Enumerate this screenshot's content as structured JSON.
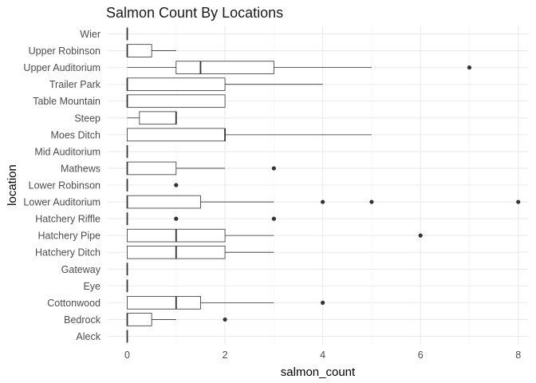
{
  "chart_data": {
    "type": "boxplot",
    "orientation": "horizontal",
    "title": "Salmon Count By Locations",
    "xlabel": "salmon_count",
    "ylabel": "location",
    "xlim": [
      -0.4,
      8.2
    ],
    "xticks": [
      0,
      2,
      4,
      6,
      8
    ],
    "grid": true,
    "categories": [
      "Wier",
      "Upper Robinson",
      "Upper Auditorium",
      "Trailer Park",
      "Table Mountain",
      "Steep",
      "Moes Ditch",
      "Mid Auditorium",
      "Mathews",
      "Lower Robinson",
      "Lower Auditorium",
      "Hatchery Riffle",
      "Hatchery Pipe",
      "Hatchery Ditch",
      "Gateway",
      "Eye",
      "Cottonwood",
      "Bedrock",
      "Aleck"
    ],
    "boxes": [
      {
        "location": "Wier",
        "min": 0,
        "q1": 0,
        "median": 0,
        "q3": 0,
        "max": 0,
        "outliers": []
      },
      {
        "location": "Upper Robinson",
        "min": 0,
        "q1": 0,
        "median": 0,
        "q3": 0.5,
        "max": 1,
        "outliers": []
      },
      {
        "location": "Upper Auditorium",
        "min": 0,
        "q1": 1,
        "median": 1.5,
        "q3": 3,
        "max": 5,
        "outliers": [
          7
        ]
      },
      {
        "location": "Trailer Park",
        "min": 0,
        "q1": 0,
        "median": 0,
        "q3": 2,
        "max": 4,
        "outliers": []
      },
      {
        "location": "Table Mountain",
        "min": 0,
        "q1": 0,
        "median": 0,
        "q3": 2,
        "max": 2,
        "outliers": []
      },
      {
        "location": "Steep",
        "min": 0,
        "q1": 0.25,
        "median": 1,
        "q3": 1,
        "max": 1,
        "outliers": []
      },
      {
        "location": "Moes Ditch",
        "min": 0,
        "q1": 0,
        "median": 2,
        "q3": 2,
        "max": 5,
        "outliers": []
      },
      {
        "location": "Mid Auditorium",
        "min": 0,
        "q1": 0,
        "median": 0,
        "q3": 0,
        "max": 0,
        "outliers": []
      },
      {
        "location": "Mathews",
        "min": 0,
        "q1": 0,
        "median": 0,
        "q3": 1,
        "max": 2,
        "outliers": [
          3
        ]
      },
      {
        "location": "Lower Robinson",
        "min": 0,
        "q1": 0,
        "median": 0,
        "q3": 0,
        "max": 0,
        "outliers": [
          1
        ]
      },
      {
        "location": "Lower Auditorium",
        "min": 0,
        "q1": 0,
        "median": 0,
        "q3": 1.5,
        "max": 3,
        "outliers": [
          4,
          5,
          8
        ]
      },
      {
        "location": "Hatchery Riffle",
        "min": 0,
        "q1": 0,
        "median": 0,
        "q3": 0,
        "max": 0,
        "outliers": [
          1,
          3
        ]
      },
      {
        "location": "Hatchery Pipe",
        "min": 0,
        "q1": 0,
        "median": 1,
        "q3": 2,
        "max": 3,
        "outliers": [
          6
        ]
      },
      {
        "location": "Hatchery Ditch",
        "min": 0,
        "q1": 0,
        "median": 1,
        "q3": 2,
        "max": 3,
        "outliers": []
      },
      {
        "location": "Gateway",
        "min": 0,
        "q1": 0,
        "median": 0,
        "q3": 0,
        "max": 0,
        "outliers": []
      },
      {
        "location": "Eye",
        "min": 0,
        "q1": 0,
        "median": 0,
        "q3": 0,
        "max": 0,
        "outliers": []
      },
      {
        "location": "Cottonwood",
        "min": 0,
        "q1": 0,
        "median": 1,
        "q3": 1.5,
        "max": 3,
        "outliers": [
          4
        ]
      },
      {
        "location": "Bedrock",
        "min": 0,
        "q1": 0,
        "median": 0,
        "q3": 0.5,
        "max": 1,
        "outliers": [
          2
        ]
      },
      {
        "location": "Aleck",
        "min": 0,
        "q1": 0,
        "median": 0,
        "q3": 0,
        "max": 0,
        "outliers": []
      }
    ],
    "colors": {
      "box_stroke": "#333333",
      "box_fill": "#ffffff",
      "outlier": "#333333",
      "grid": "#ebebeb",
      "grid_minor": "#f3f3f3"
    }
  }
}
